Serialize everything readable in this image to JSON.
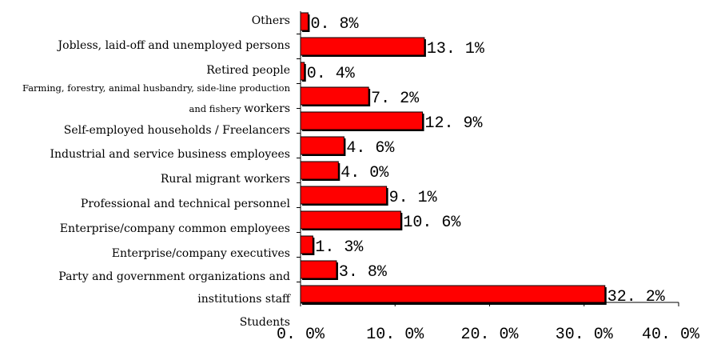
{
  "chart_data": {
    "type": "bar",
    "orientation": "horizontal",
    "categories": [
      "Others",
      "Jobless, laid-off and unemployed persons",
      "Retired people",
      "Farming, forestry, animal husbandry, side-line production and fishery workers",
      "Self-employed households / Freelancers",
      "Industrial and service business employees",
      "Rural migrant workers",
      "Professional and technical personnel",
      "Enterprise/company common employees",
      "Enterprise/company executives",
      "Party and government organizations and institutions staff",
      "Students"
    ],
    "label_lines": [
      [
        "Others"
      ],
      [
        "Jobless, laid-off and unemployed persons"
      ],
      [
        "Retired people"
      ],
      [
        "Farming, forestry, animal husbandry, side-line production",
        "and fishery workers"
      ],
      [
        "Self-employed households / Freelancers"
      ],
      [
        "Industrial and service business employees"
      ],
      [
        "Rural migrant workers"
      ],
      [
        "Professional and technical personnel"
      ],
      [
        "Enterprise/company common employees"
      ],
      [
        "Enterprise/company executives"
      ],
      [
        "Party and government organizations and",
        "institutions staff"
      ],
      [
        "Students"
      ]
    ],
    "values": [
      0.8,
      13.1,
      0.4,
      7.2,
      12.9,
      4.6,
      4.0,
      9.1,
      10.6,
      1.3,
      3.8,
      32.2
    ],
    "value_labels": [
      "0. 8%",
      "13. 1%",
      "0. 4%",
      "7. 2%",
      "12. 9%",
      "4. 6%",
      "4. 0%",
      "9. 1%",
      "10. 6%",
      "1. 3%",
      "3. 8%",
      "32. 2%"
    ],
    "xlim": [
      0,
      40
    ],
    "x_ticks": [
      0,
      10,
      20,
      30,
      40
    ],
    "x_tick_labels": [
      "0. 0%",
      "10. 0%",
      "20. 0%",
      "30. 0%",
      "40. 0%"
    ],
    "title": "",
    "xlabel": "",
    "ylabel": "",
    "grid": false,
    "colors": {
      "bar": "#ff0000",
      "bar_edge": "#000000",
      "axis": "#000000"
    }
  }
}
